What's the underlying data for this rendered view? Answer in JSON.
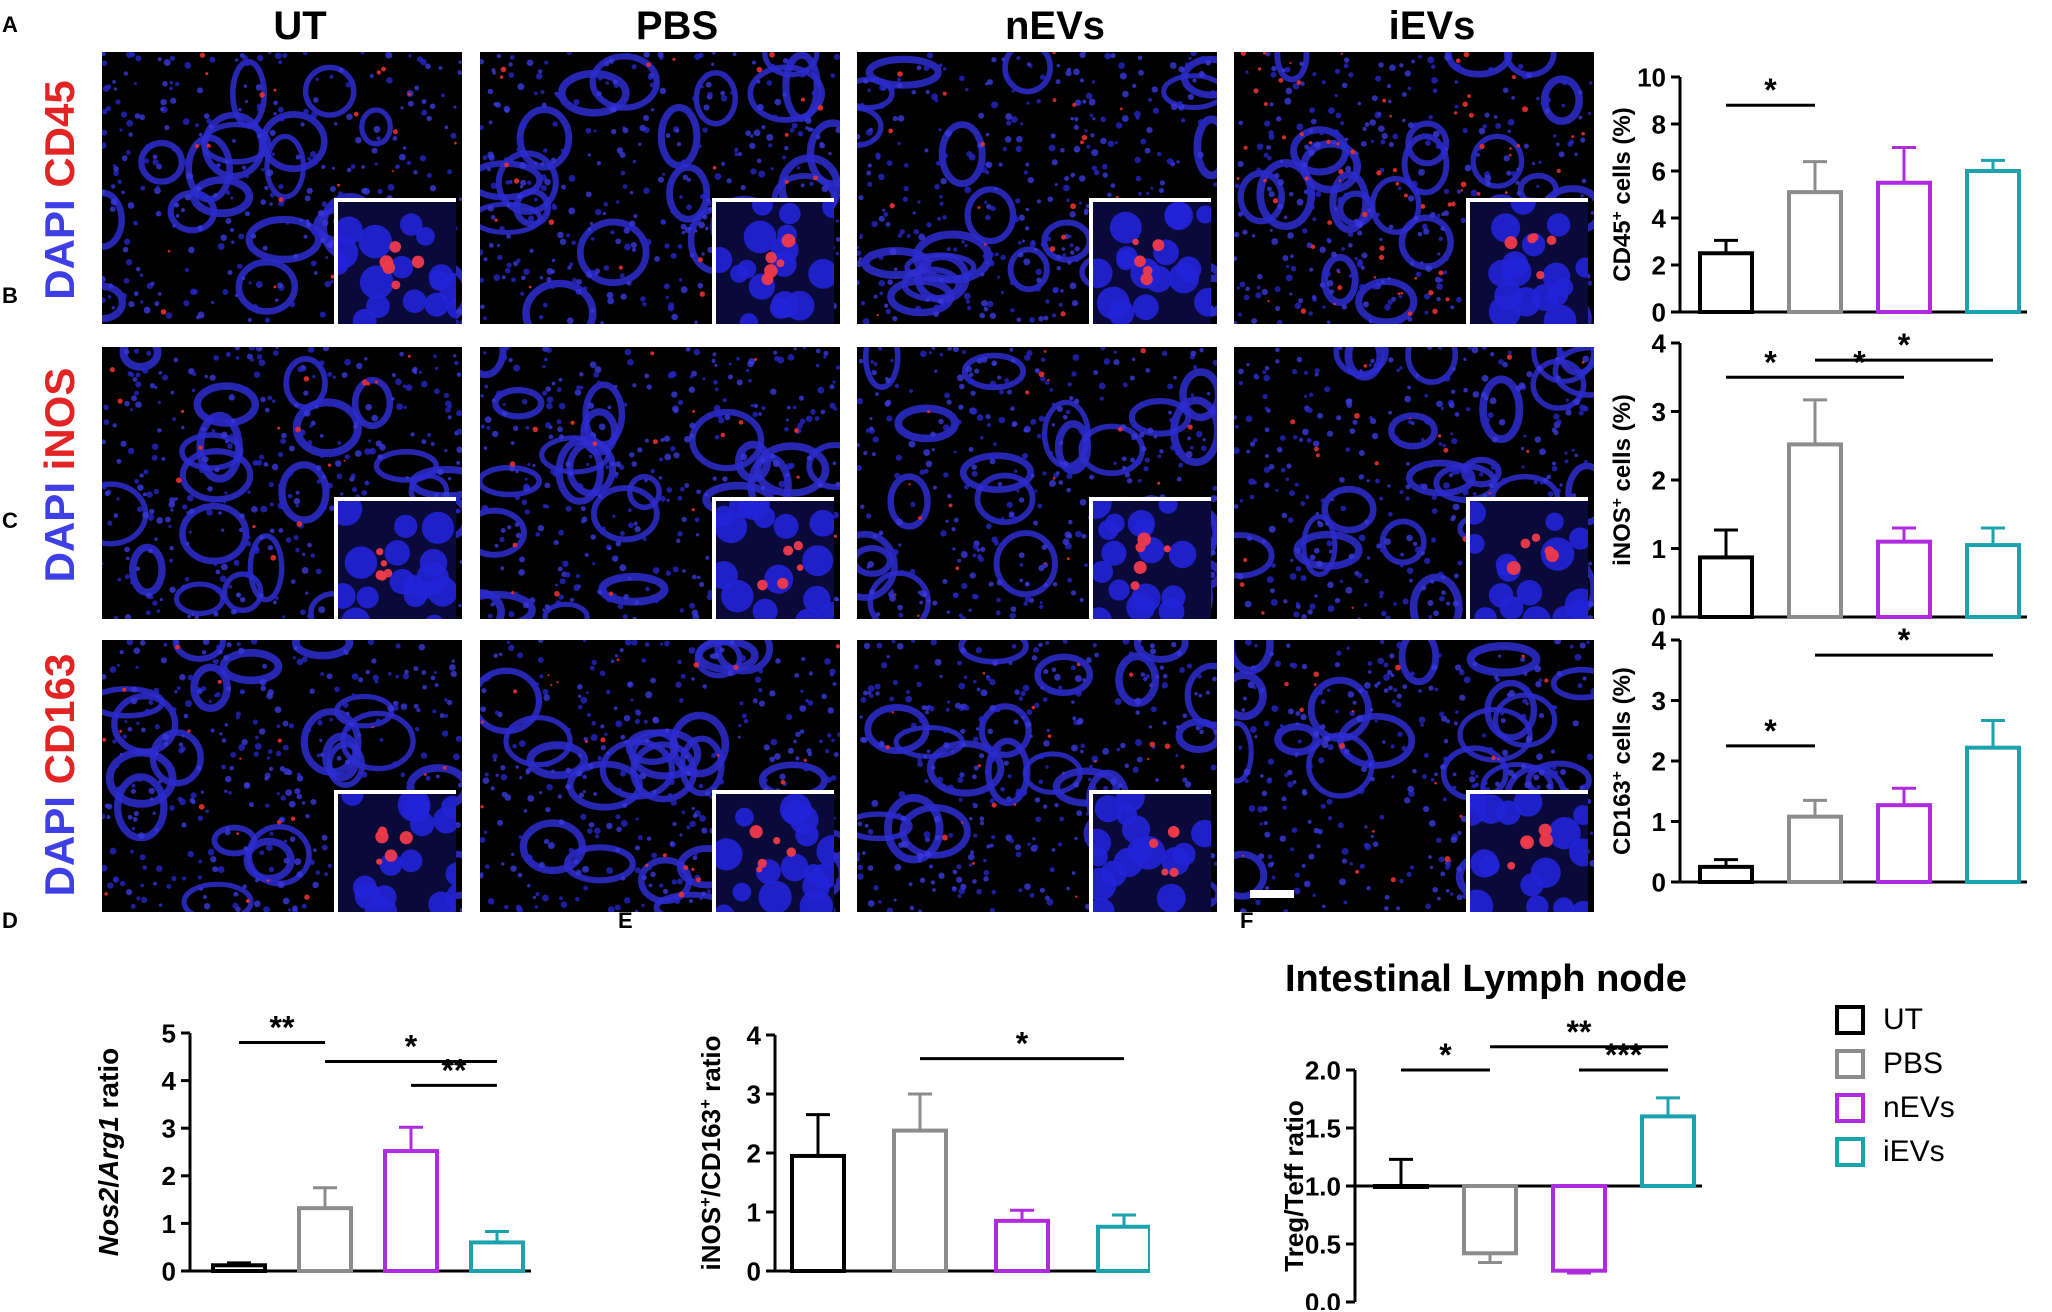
{
  "column_headers": [
    "UT",
    "PBS",
    "nEVs",
    "iEVs"
  ],
  "panels": {
    "A": {
      "letter": "A",
      "stain_dapi": "DAPI",
      "stain_marker": "CD45"
    },
    "B": {
      "letter": "B",
      "stain_dapi": "DAPI",
      "stain_marker": "iNOS"
    },
    "C": {
      "letter": "C",
      "stain_dapi": "DAPI",
      "stain_marker": "CD163"
    },
    "D": {
      "letter": "D"
    },
    "E": {
      "letter": "E"
    },
    "F": {
      "letter": "F",
      "title": "Intestinal Lymph node"
    }
  },
  "legend": {
    "items": [
      {
        "label": "UT",
        "color": "#000000"
      },
      {
        "label": "PBS",
        "color": "#8c8c8c"
      },
      {
        "label": "nEVs",
        "color": "#b02be0"
      },
      {
        "label": "iEVs",
        "color": "#1aa2ae"
      }
    ]
  },
  "chart_data": [
    {
      "panel": "A",
      "type": "bar",
      "categories": [
        "UT",
        "PBS",
        "nEVs",
        "iEVs"
      ],
      "values": [
        2.5,
        5.1,
        5.5,
        6.0
      ],
      "errors": [
        0.55,
        1.3,
        1.5,
        0.45
      ],
      "colors": [
        "#000000",
        "#8c8c8c",
        "#b02be0",
        "#1aa2ae"
      ],
      "ylabel_main": "CD45",
      "ylabel_sup": "+",
      "ylabel_rest": " cells (%)",
      "ylim": [
        0,
        10
      ],
      "yticks": [
        0,
        2,
        4,
        6,
        8,
        10
      ],
      "significance": [
        {
          "from": 0,
          "to": 1,
          "label": "*",
          "y": 8.8
        }
      ]
    },
    {
      "panel": "B",
      "type": "bar",
      "categories": [
        "UT",
        "PBS",
        "nEVs",
        "iEVs"
      ],
      "values": [
        0.87,
        2.52,
        1.1,
        1.05
      ],
      "errors": [
        0.4,
        0.65,
        0.2,
        0.25
      ],
      "colors": [
        "#000000",
        "#8c8c8c",
        "#b02be0",
        "#1aa2ae"
      ],
      "ylabel_main": "iNOS",
      "ylabel_sup": "+",
      "ylabel_rest": " cells (%)",
      "ylim": [
        0,
        4
      ],
      "yticks": [
        0,
        1,
        2,
        3,
        4
      ],
      "significance": [
        {
          "from": 0,
          "to": 1,
          "label": "*",
          "y": 3.5
        },
        {
          "from": 1,
          "to": 2,
          "label": "*",
          "y": 3.5
        },
        {
          "from": 1,
          "to": 3,
          "label": "*",
          "y": 3.75
        }
      ]
    },
    {
      "panel": "C",
      "type": "bar",
      "categories": [
        "UT",
        "PBS",
        "nEVs",
        "iEVs"
      ],
      "values": [
        0.25,
        1.08,
        1.27,
        2.22
      ],
      "errors": [
        0.12,
        0.27,
        0.28,
        0.45
      ],
      "colors": [
        "#000000",
        "#8c8c8c",
        "#b02be0",
        "#1aa2ae"
      ],
      "ylabel_main": "CD163",
      "ylabel_sup": "+",
      "ylabel_rest": " cells (%)",
      "ylim": [
        0,
        4
      ],
      "yticks": [
        0,
        1,
        2,
        3,
        4
      ],
      "significance": [
        {
          "from": 0,
          "to": 1,
          "label": "*",
          "y": 2.25
        },
        {
          "from": 1,
          "to": 3,
          "label": "*",
          "y": 3.75
        }
      ]
    },
    {
      "panel": "D",
      "type": "bar",
      "categories": [
        "UT",
        "PBS",
        "nEVs",
        "iEVs"
      ],
      "values": [
        0.12,
        1.32,
        2.52,
        0.6
      ],
      "errors": [
        0.05,
        0.43,
        0.5,
        0.23
      ],
      "colors": [
        "#000000",
        "#8c8c8c",
        "#b02be0",
        "#1aa2ae"
      ],
      "ylabel_italic_a": "Nos2",
      "ylabel_slash": "/",
      "ylabel_italic_b": "Arg1",
      "ylabel_rest": " ratio",
      "ylim": [
        0,
        5
      ],
      "yticks": [
        0,
        1,
        2,
        3,
        4,
        5
      ],
      "significance": [
        {
          "from": 0,
          "to": 1,
          "label": "**",
          "y": 4.8
        },
        {
          "from": 1,
          "to": 3,
          "label": "*",
          "y": 4.4
        },
        {
          "from": 2,
          "to": 3,
          "label": "**",
          "y": 3.9
        }
      ]
    },
    {
      "panel": "E",
      "type": "bar",
      "categories": [
        "UT",
        "PBS",
        "nEVs",
        "iEVs"
      ],
      "values": [
        1.95,
        2.38,
        0.85,
        0.75
      ],
      "errors": [
        0.7,
        0.62,
        0.18,
        0.2
      ],
      "colors": [
        "#000000",
        "#8c8c8c",
        "#b02be0",
        "#1aa2ae"
      ],
      "ylabel_main": "iNOS",
      "ylabel_sup": "+",
      "ylabel_slash": "/CD163",
      "ylabel_sup2": "+",
      "ylabel_rest": " ratio",
      "ylim": [
        0,
        4
      ],
      "yticks": [
        0,
        1,
        2,
        3,
        4
      ],
      "significance": [
        {
          "from": 1,
          "to": 3,
          "label": "*",
          "y": 3.6
        }
      ]
    },
    {
      "panel": "F",
      "type": "bar",
      "categories": [
        "UT",
        "PBS",
        "nEVs",
        "iEVs"
      ],
      "values": [
        1.0,
        0.42,
        0.27,
        1.6
      ],
      "errors": [
        0.23,
        0.08,
        0.02,
        0.16
      ],
      "baseline": 1.0,
      "colors": [
        "#000000",
        "#8c8c8c",
        "#b02be0",
        "#1aa2ae"
      ],
      "ylabel_main": "Treg/Teff ratio",
      "ylim": [
        0,
        2.0
      ],
      "yticks": [
        0.0,
        0.5,
        1.0,
        1.5,
        2.0
      ],
      "ytick_labels": [
        "0.0",
        "0.5",
        "1.0",
        "1.5",
        "2.0"
      ],
      "significance": [
        {
          "from": 0,
          "to": 1,
          "label": "*",
          "y": 2.0
        },
        {
          "from": 1,
          "to": 3,
          "label": "**",
          "y": 2.2
        },
        {
          "from": 2,
          "to": 3,
          "label": "***",
          "y": 2.0
        }
      ]
    }
  ]
}
